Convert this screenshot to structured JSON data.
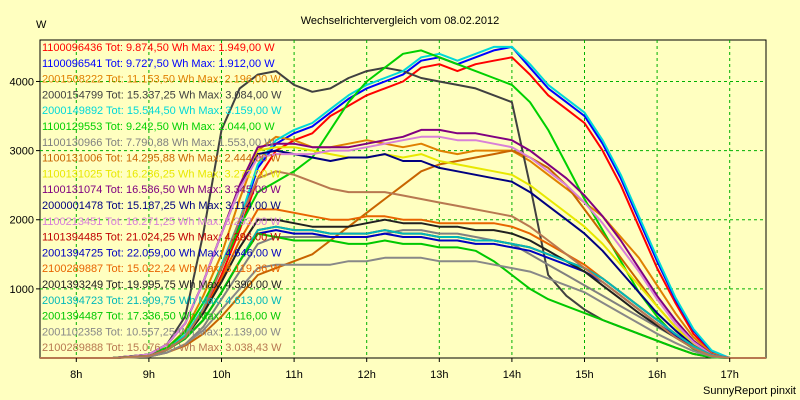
{
  "chart_data": {
    "type": "line",
    "title": "Wechselrichtervergleich vom 08.02.2012",
    "ylabel": "W",
    "footer": "SunnyReport pinxit",
    "xlim": [
      7.5,
      17.5
    ],
    "ylim": [
      0,
      4600
    ],
    "grid": true,
    "legend_placement": "top-left",
    "x_ticks": [
      8,
      9,
      10,
      11,
      12,
      13,
      14,
      15,
      16,
      17
    ],
    "x_tick_labels": [
      "8h",
      "9h",
      "10h",
      "11h",
      "12h",
      "13h",
      "14h",
      "15h",
      "16h",
      "17h"
    ],
    "y_ticks": [
      1000,
      2000,
      3000,
      4000
    ],
    "y_tick_labels": [
      "1000",
      "2000",
      "3000",
      "4000"
    ],
    "x": [
      7.5,
      8.0,
      8.5,
      9.0,
      9.25,
      9.5,
      9.75,
      10.0,
      10.25,
      10.5,
      10.75,
      11.0,
      11.25,
      11.5,
      11.75,
      12.0,
      12.25,
      12.5,
      12.75,
      13.0,
      13.25,
      13.5,
      13.75,
      14.0,
      14.25,
      14.5,
      14.75,
      15.0,
      15.25,
      15.5,
      15.75,
      16.0,
      16.25,
      16.5,
      16.75,
      17.0,
      17.25,
      17.5
    ],
    "series": [
      {
        "name": "1100096436 Tot: 9.874,50 Wh Max: 1.949,00 W",
        "color": "#ff0000",
        "values": [
          0,
          0,
          0,
          30,
          120,
          300,
          650,
          1200,
          1850,
          2600,
          3000,
          3150,
          3250,
          3500,
          3650,
          3800,
          3900,
          4000,
          4200,
          4250,
          4150,
          4250,
          4300,
          4350,
          4100,
          3800,
          3600,
          3400,
          3000,
          2500,
          1900,
          1300,
          800,
          350,
          80,
          0,
          0,
          0
        ]
      },
      {
        "name": "1100096541 Tot: 9.727,50 Wh Max: 1.912,00 W",
        "color": "#0000ff",
        "values": [
          0,
          0,
          0,
          30,
          130,
          330,
          700,
          1300,
          1950,
          2750,
          3100,
          3250,
          3350,
          3550,
          3750,
          3900,
          4000,
          4100,
          4300,
          4350,
          4250,
          4350,
          4450,
          4500,
          4200,
          3900,
          3700,
          3500,
          3100,
          2600,
          2000,
          1400,
          850,
          400,
          100,
          0,
          0,
          0
        ]
      },
      {
        "name": "2001508222 Tot: 11.153,50 Wh Max: 2.196,00 W",
        "color": "#e08000",
        "values": [
          0,
          0,
          0,
          40,
          150,
          400,
          900,
          1500,
          2300,
          3000,
          3200,
          3150,
          3050,
          3050,
          3100,
          3150,
          3100,
          3050,
          3100,
          3000,
          2950,
          3000,
          3000,
          3000,
          2850,
          2650,
          2450,
          2250,
          2050,
          1750,
          1450,
          1050,
          650,
          300,
          70,
          0,
          0,
          0
        ]
      },
      {
        "name": "2000154799 Tot: 15.337,25 Wh Max: 3.084,00 W",
        "color": "#404040",
        "values": [
          0,
          0,
          0,
          50,
          200,
          600,
          1800,
          3300,
          3900,
          4100,
          4150,
          3950,
          3850,
          3900,
          4050,
          4150,
          4200,
          4150,
          4050,
          4000,
          3950,
          3900,
          3800,
          3700,
          2500,
          1200,
          900,
          700,
          550,
          450,
          350,
          250,
          150,
          60,
          10,
          0,
          0,
          0
        ]
      },
      {
        "name": "2000149892 Tot: 15.544,50 Wh Max: 3.159,00 W",
        "color": "#00d8d8",
        "values": [
          0,
          0,
          0,
          30,
          130,
          330,
          720,
          1350,
          2000,
          2800,
          3150,
          3300,
          3400,
          3600,
          3800,
          3950,
          4050,
          4150,
          4350,
          4400,
          4300,
          4400,
          4500,
          4500,
          4250,
          3950,
          3750,
          3550,
          3150,
          2650,
          2050,
          1450,
          880,
          420,
          110,
          0,
          0,
          0
        ]
      },
      {
        "name": "1100129553 Tot: 9.242,50 Wh Max: 2.044,00 W",
        "color": "#00d000",
        "values": [
          0,
          0,
          0,
          40,
          150,
          380,
          800,
          1300,
          1900,
          2400,
          2550,
          2700,
          2900,
          3300,
          3700,
          4000,
          4200,
          4400,
          4450,
          4350,
          4250,
          4150,
          4050,
          3950,
          3700,
          3300,
          2800,
          2300,
          1850,
          1400,
          950,
          600,
          320,
          130,
          20,
          0,
          0,
          0
        ]
      },
      {
        "name": "1100130966 Tot: 7.790,88 Wh Max: 1.553,00 W",
        "color": "#808080",
        "values": [
          0,
          0,
          0,
          20,
          80,
          200,
          450,
          850,
          1250,
          1650,
          1750,
          1750,
          1750,
          1750,
          1750,
          1750,
          1800,
          1850,
          1850,
          1800,
          1800,
          1750,
          1700,
          1650,
          1500,
          1350,
          1200,
          1050,
          900,
          750,
          600,
          450,
          300,
          150,
          30,
          0,
          0,
          0
        ]
      },
      {
        "name": "1100131006 Tot: 14.295,88 Wh Max: 2.444,00 W",
        "color": "#c86400",
        "values": [
          0,
          0,
          0,
          20,
          80,
          180,
          350,
          600,
          900,
          1200,
          1300,
          1400,
          1500,
          1700,
          1900,
          2100,
          2300,
          2500,
          2700,
          2800,
          2850,
          2900,
          2950,
          3000,
          2900,
          2750,
          2500,
          2150,
          1800,
          1450,
          1100,
          750,
          450,
          200,
          40,
          0,
          0,
          0
        ]
      },
      {
        "name": "1100131025 Tot: 16.236,25 Wh Max: 3.272,00 W",
        "color": "#e8e800",
        "values": [
          0,
          0,
          0,
          50,
          200,
          500,
          1100,
          1800,
          2500,
          3000,
          3050,
          3050,
          3000,
          2950,
          2900,
          2900,
          2950,
          2900,
          2950,
          2850,
          2800,
          2750,
          2700,
          2650,
          2500,
          2300,
          2100,
          1900,
          1650,
          1350,
          1050,
          750,
          450,
          200,
          40,
          0,
          0,
          0
        ]
      },
      {
        "name": "1100131074 Tot: 16.586,50 Wh Max: 3.345,00 W",
        "color": "#800080",
        "values": [
          0,
          0,
          0,
          50,
          200,
          500,
          1100,
          1800,
          2500,
          3050,
          3100,
          3100,
          3050,
          3050,
          3050,
          3100,
          3150,
          3200,
          3300,
          3300,
          3250,
          3250,
          3200,
          3150,
          3000,
          2800,
          2600,
          2350,
          2050,
          1700,
          1300,
          900,
          550,
          250,
          50,
          0,
          0,
          0
        ]
      },
      {
        "name": "2000001478 Tot: 15.187,25 Wh Max: 3.114,00 W",
        "color": "#000080",
        "values": [
          0,
          0,
          0,
          50,
          200,
          500,
          1100,
          1800,
          2450,
          2950,
          3000,
          2950,
          2900,
          2850,
          2900,
          2900,
          2950,
          2850,
          2850,
          2750,
          2700,
          2650,
          2600,
          2550,
          2400,
          2200,
          2000,
          1800,
          1550,
          1250,
          950,
          650,
          400,
          180,
          35,
          0,
          0,
          0
        ]
      },
      {
        "name": "1100213451 Tot: 16.271,25 Wh Max: 3.293,00 W",
        "color": "#d880d8",
        "values": [
          0,
          0,
          0,
          50,
          200,
          500,
          1100,
          1800,
          2450,
          2900,
          2950,
          2950,
          2950,
          3000,
          3000,
          3050,
          3100,
          3150,
          3200,
          3200,
          3150,
          3150,
          3100,
          3050,
          2900,
          2700,
          2500,
          2250,
          1950,
          1600,
          1250,
          850,
          500,
          230,
          45,
          0,
          0,
          0
        ]
      },
      {
        "name": "1101394485 Tot: 21.024,25 Wh Max: 4.396,00 W",
        "color": "#c00000",
        "values": [
          0,
          0,
          0,
          30,
          120,
          280,
          550,
          950,
          1400,
          1850,
          1900,
          1850,
          1850,
          1800,
          1800,
          1800,
          1850,
          1800,
          1800,
          1750,
          1750,
          1700,
          1700,
          1650,
          1600,
          1500,
          1400,
          1300,
          1150,
          950,
          750,
          550,
          350,
          170,
          40,
          0,
          0,
          0
        ]
      },
      {
        "name": "2001394725 Tot: 22.059,00 Wh Max: 4.646,00 W",
        "color": "#0000c0",
        "values": [
          0,
          0,
          0,
          30,
          120,
          280,
          550,
          950,
          1400,
          1800,
          1850,
          1800,
          1800,
          1750,
          1750,
          1750,
          1800,
          1750,
          1750,
          1700,
          1700,
          1650,
          1650,
          1600,
          1550,
          1450,
          1350,
          1250,
          1100,
          900,
          700,
          500,
          320,
          150,
          35,
          0,
          0,
          0
        ]
      },
      {
        "name": "2100289887 Tot: 15.022,24 Wh Max: 3.119,36 W",
        "color": "#e86400",
        "values": [
          0,
          0,
          0,
          30,
          120,
          300,
          650,
          1150,
          1700,
          2150,
          2150,
          2100,
          2050,
          2000,
          2000,
          2050,
          2050,
          2000,
          2000,
          1950,
          1950,
          1950,
          1950,
          1900,
          1800,
          1650,
          1500,
          1350,
          1150,
          950,
          750,
          550,
          350,
          170,
          40,
          0,
          0,
          0
        ]
      },
      {
        "name": "2001393249 Tot: 19.995,75 Wh Max: 4.390,00 W",
        "color": "#202020",
        "values": [
          0,
          0,
          0,
          30,
          120,
          300,
          650,
          1100,
          1600,
          2000,
          2000,
          1950,
          1900,
          1900,
          1900,
          1950,
          2000,
          1950,
          1950,
          1900,
          1900,
          1850,
          1850,
          1800,
          1700,
          1550,
          1400,
          1250,
          1050,
          850,
          650,
          470,
          300,
          140,
          30,
          0,
          0,
          0
        ]
      },
      {
        "name": "2001394723 Tot: 21.909,75 Wh Max: 4.613,00 W",
        "color": "#00b8b8",
        "values": [
          0,
          0,
          0,
          30,
          120,
          280,
          550,
          950,
          1400,
          1850,
          1900,
          1850,
          1850,
          1800,
          1800,
          1800,
          1850,
          1800,
          1800,
          1750,
          1750,
          1700,
          1700,
          1650,
          1600,
          1500,
          1400,
          1300,
          1150,
          950,
          750,
          550,
          350,
          170,
          40,
          0,
          0,
          0
        ]
      },
      {
        "name": "2001394487 Tot: 17.336,50 Wh Max: 4.116,00 W",
        "color": "#00c800",
        "values": [
          0,
          0,
          0,
          30,
          120,
          280,
          550,
          950,
          1400,
          1800,
          1750,
          1700,
          1700,
          1700,
          1650,
          1650,
          1700,
          1650,
          1650,
          1600,
          1600,
          1550,
          1400,
          1200,
          1000,
          850,
          750,
          650,
          550,
          450,
          350,
          250,
          150,
          60,
          10,
          0,
          0,
          0
        ]
      },
      {
        "name": "2001102358 Tot: 10.557,25 Wh Max: 2.139,00 W",
        "color": "#888888",
        "values": [
          0,
          0,
          0,
          20,
          80,
          200,
          400,
          700,
          1000,
          1300,
          1350,
          1350,
          1350,
          1350,
          1400,
          1400,
          1450,
          1450,
          1450,
          1400,
          1400,
          1400,
          1350,
          1300,
          1250,
          1150,
          1050,
          950,
          800,
          650,
          500,
          350,
          220,
          100,
          20,
          0,
          0,
          0
        ]
      },
      {
        "name": "2100289888 Tot: 15.076,76 Wh Max: 3.038,43 W",
        "color": "#b87850",
        "values": [
          0,
          0,
          0,
          30,
          120,
          300,
          700,
          1300,
          2000,
          2600,
          2700,
          2650,
          2550,
          2450,
          2400,
          2400,
          2400,
          2350,
          2300,
          2250,
          2200,
          2150,
          2100,
          2050,
          1900,
          1700,
          1500,
          1300,
          1100,
          900,
          700,
          500,
          300,
          140,
          30,
          0,
          0,
          0
        ]
      }
    ]
  }
}
